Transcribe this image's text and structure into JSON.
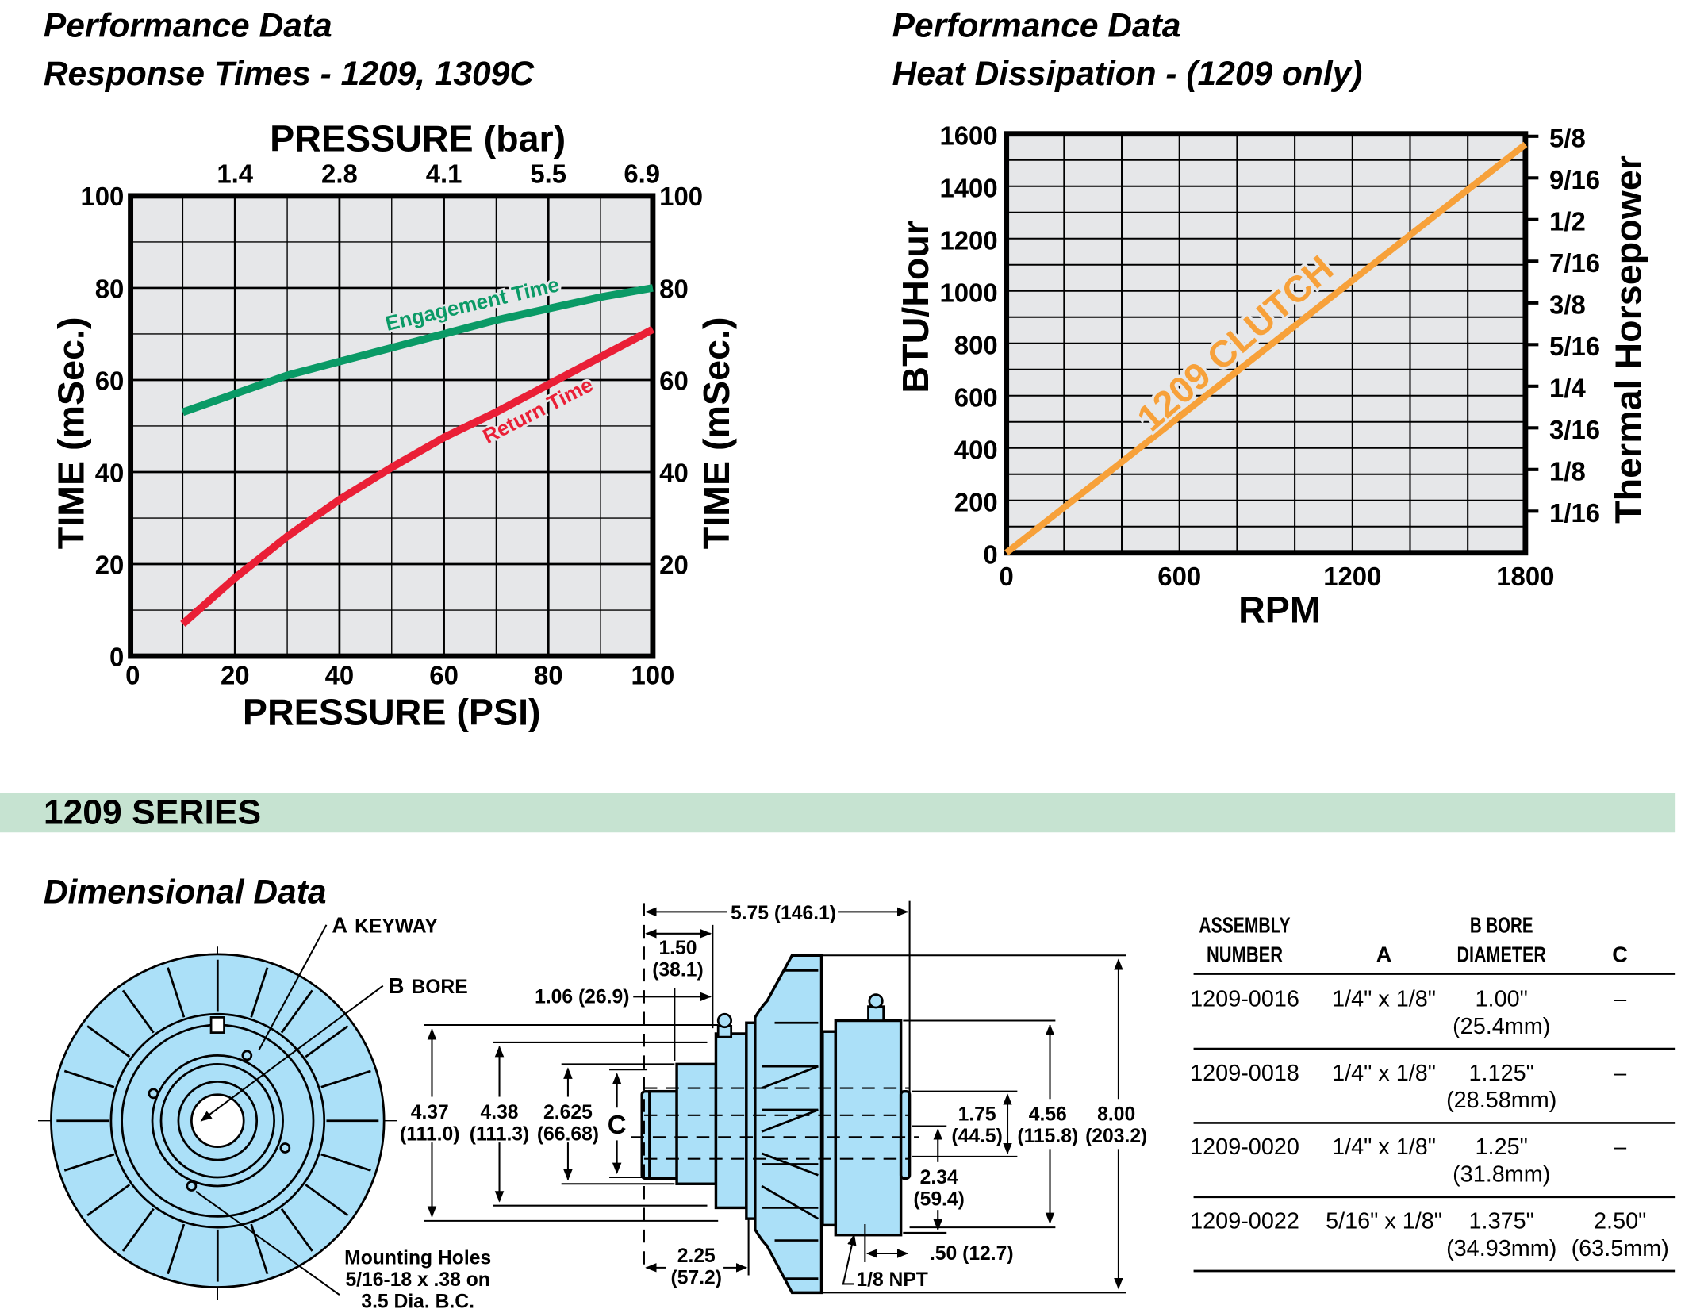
{
  "colors": {
    "plot_bg": "#e6e7e9",
    "engagement": "#0a9a66",
    "return": "#ea1f36",
    "clutch_line": "#f7a13a",
    "series_band": "#c6e3d1",
    "part_fill": "#abe0f8"
  },
  "chart_data": [
    {
      "type": "line",
      "title": "Performance Data",
      "subtitle": "Response Times  - 1209, 1309C",
      "xlabel": "PRESSURE (PSI)",
      "x2label": "PRESSURE (bar)",
      "ylabel": "TIME (mSec.)",
      "y2label": "TIME (mSec.)",
      "xlim": [
        0,
        100
      ],
      "ylim": [
        0,
        100
      ],
      "grid": true,
      "x_ticks": [
        "0",
        "20",
        "40",
        "60",
        "80",
        "100"
      ],
      "x2_ticks": [
        "1.4",
        "2.8",
        "4.1",
        "5.5",
        "6.9"
      ],
      "y_ticks": [
        "0",
        "20",
        "40",
        "60",
        "80",
        "100"
      ],
      "y2_ticks": [
        "20",
        "40",
        "60",
        "80",
        "100"
      ],
      "series": [
        {
          "name": "Engagement Time",
          "x": [
            10,
            20,
            30,
            40,
            50,
            60,
            70,
            80,
            90,
            100
          ],
          "values": [
            53,
            57,
            61,
            64,
            67,
            70,
            73,
            75.5,
            78,
            80
          ]
        },
        {
          "name": "Return Time",
          "x": [
            10,
            20,
            30,
            40,
            50,
            60,
            70,
            80,
            90,
            100
          ],
          "values": [
            7,
            17,
            26,
            34,
            41,
            47.5,
            53,
            59,
            65,
            71
          ]
        }
      ]
    },
    {
      "type": "line",
      "title": "Performance Data",
      "subtitle": "Heat Dissipation - (1209 only)",
      "xlabel": "RPM",
      "ylabel": "BTU/Hour",
      "y2label": "Thermal Horsepower",
      "xlim": [
        0,
        1800
      ],
      "ylim": [
        0,
        1600
      ],
      "grid": true,
      "x_ticks": [
        "0",
        "600",
        "1200",
        "1800"
      ],
      "y_ticks": [
        "0",
        "200",
        "400",
        "600",
        "800",
        "1000",
        "1200",
        "1400",
        "1600"
      ],
      "y2_ticks": [
        "1/16",
        "1/8",
        "3/16",
        "1/4",
        "5/16",
        "3/8",
        "7/16",
        "1/2",
        "9/16",
        "5/8"
      ],
      "series": [
        {
          "name": "1209 CLUTCH",
          "x": [
            0,
            1800
          ],
          "values": [
            0,
            1560
          ]
        }
      ]
    }
  ],
  "series_banner": "1209 SERIES",
  "dimensional": {
    "title": "Dimensional Data",
    "front_labels": {
      "a_letter": "A",
      "a_text": "KEYWAY",
      "b_letter": "B",
      "b_text": "BORE",
      "mounting": [
        "Mounting Holes",
        "5/16-18 x .38 on",
        "3.5 Dia. B.C."
      ]
    },
    "dims": {
      "overall_len": "5.75 (146.1)",
      "d150": "1.50",
      "d150mm": "(38.1)",
      "d106": "1.06 (26.9)",
      "d437": "4.37",
      "d437mm": "(111.0)",
      "d438": "4.38",
      "d438mm": "(111.3)",
      "d2625": "2.625",
      "d2625mm": "(66.68)",
      "c": "C",
      "d175": "1.75",
      "d175mm": "(44.5)",
      "d456": "4.56",
      "d456mm": "(115.8)",
      "d800": "8.00",
      "d800mm": "(203.2)",
      "d234": "2.34",
      "d234mm": "(59.4)",
      "d050": ".50 (12.7)",
      "d225": "2.25",
      "d225mm": "(57.2)",
      "npt": "1/8 NPT"
    }
  },
  "table": {
    "headers": [
      [
        "ASSEMBLY",
        "NUMBER"
      ],
      [
        "",
        "A"
      ],
      [
        "B BORE",
        "DIAMETER"
      ],
      [
        "",
        "C"
      ]
    ],
    "rows": [
      {
        "num": "1209-0016",
        "a": "1/4\" x 1/8\"",
        "b": "1.00\"",
        "bmm": "(25.4mm)",
        "c": "–",
        "cmm": ""
      },
      {
        "num": "1209-0018",
        "a": "1/4\" x 1/8\"",
        "b": "1.125\"",
        "bmm": "(28.58mm)",
        "c": "–",
        "cmm": ""
      },
      {
        "num": "1209-0020",
        "a": "1/4\" x 1/8\"",
        "b": "1.25\"",
        "bmm": "(31.8mm)",
        "c": "–",
        "cmm": ""
      },
      {
        "num": "1209-0022",
        "a": "5/16\" x 1/8\"",
        "b": "1.375\"",
        "bmm": "(34.93mm)",
        "c": "2.50\"",
        "cmm": "(63.5mm)"
      }
    ]
  }
}
